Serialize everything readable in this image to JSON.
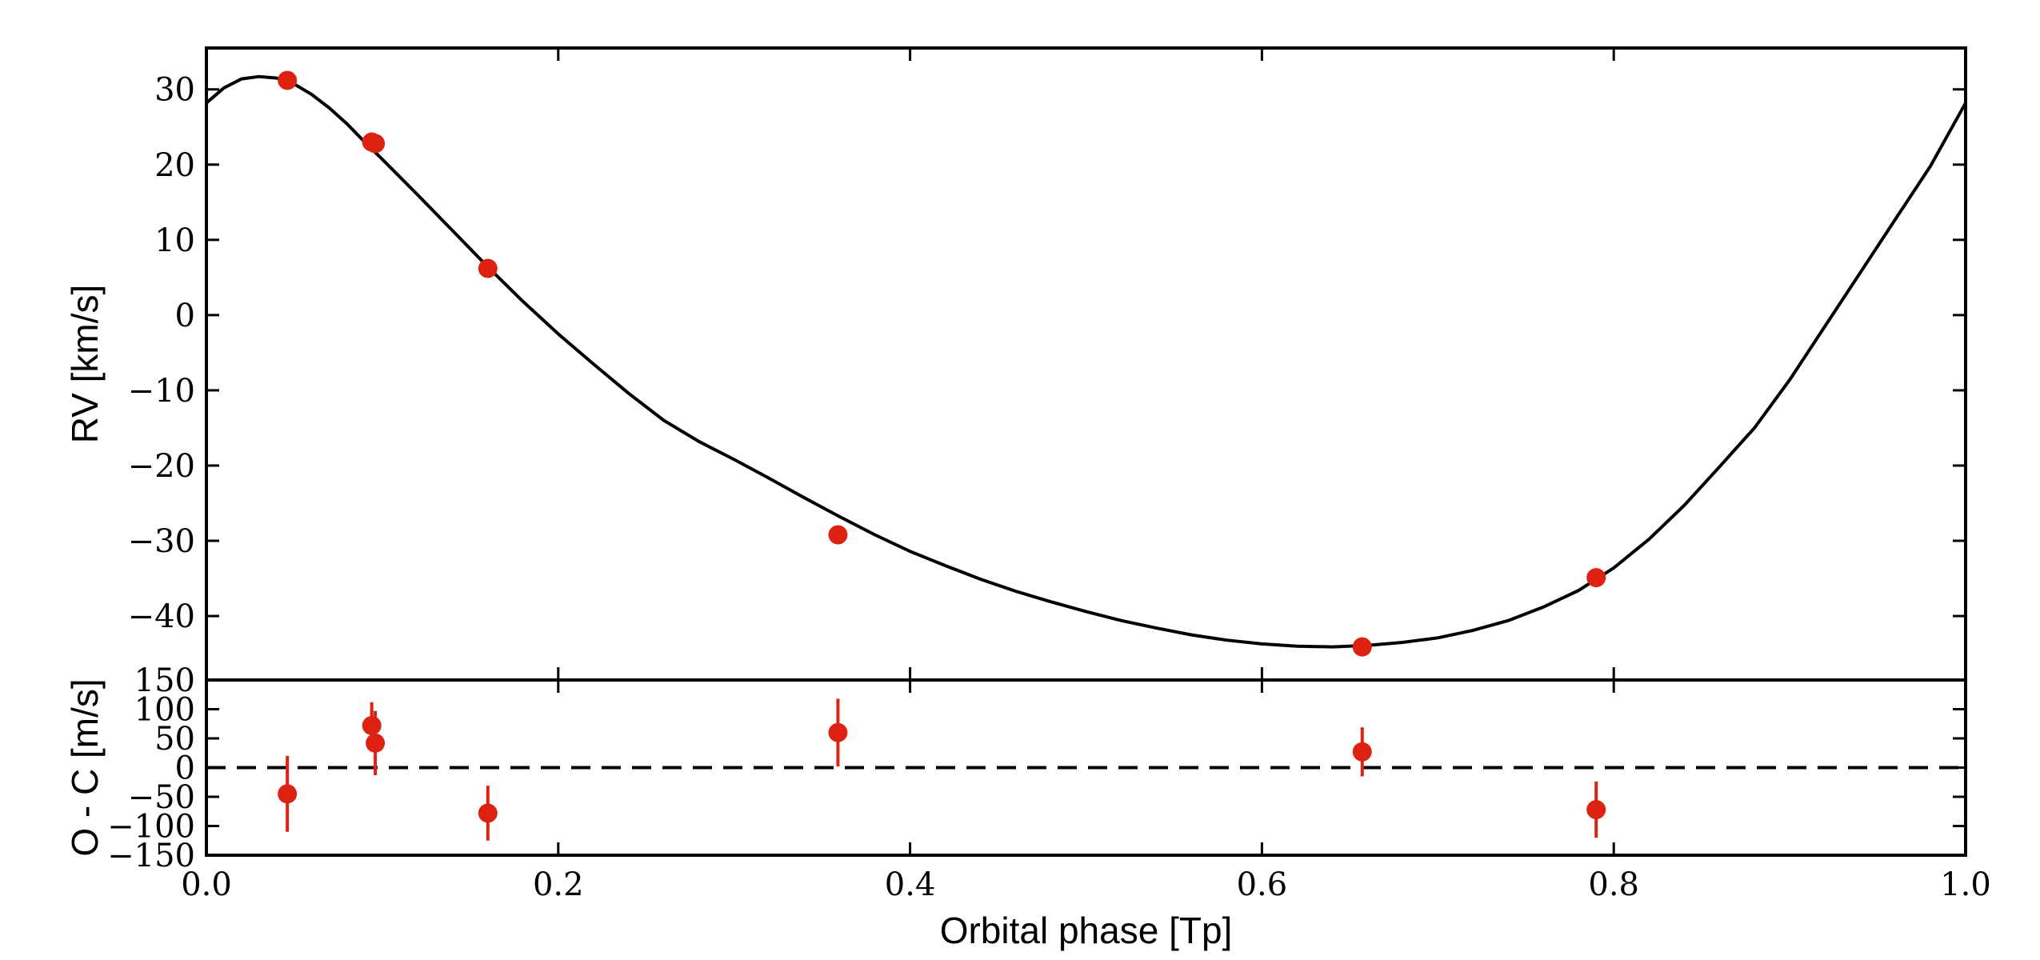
{
  "chart_data": [
    {
      "type": "line",
      "panel": "top",
      "ylabel": "RV [km/s]",
      "xlim": [
        0.0,
        1.0
      ],
      "ylim": [
        -48.5,
        35.5
      ],
      "yticks": [
        30,
        20,
        10,
        0,
        -10,
        -20,
        -30,
        -40
      ],
      "ytick_labels": [
        "30",
        "20",
        "10",
        "0",
        "−10",
        "−20",
        "−30",
        "−40"
      ],
      "grid": false,
      "model_color": "#000000",
      "point_color": "#dd2211",
      "model_curve": {
        "x": [
          0.0,
          0.01,
          0.02,
          0.03,
          0.04,
          0.05,
          0.06,
          0.07,
          0.08,
          0.09,
          0.1,
          0.12,
          0.14,
          0.16,
          0.18,
          0.2,
          0.22,
          0.24,
          0.26,
          0.28,
          0.3,
          0.32,
          0.34,
          0.36,
          0.38,
          0.4,
          0.42,
          0.44,
          0.46,
          0.48,
          0.5,
          0.52,
          0.54,
          0.56,
          0.58,
          0.6,
          0.62,
          0.64,
          0.66,
          0.68,
          0.7,
          0.72,
          0.74,
          0.76,
          0.78,
          0.8,
          0.82,
          0.84,
          0.86,
          0.88,
          0.9,
          0.92,
          0.94,
          0.96,
          0.98,
          1.0
        ],
        "y": [
          28.2,
          30.2,
          31.4,
          31.7,
          31.5,
          30.7,
          29.3,
          27.5,
          25.4,
          23.0,
          20.7,
          16.0,
          11.2,
          6.4,
          1.8,
          -2.5,
          -6.5,
          -10.4,
          -14.0,
          -16.8,
          -19.2,
          -21.7,
          -24.3,
          -26.8,
          -29.2,
          -31.4,
          -33.3,
          -35.1,
          -36.7,
          -38.1,
          -39.4,
          -40.6,
          -41.6,
          -42.5,
          -43.2,
          -43.7,
          -44.0,
          -44.1,
          -43.9,
          -43.5,
          -42.9,
          -41.9,
          -40.6,
          -38.8,
          -36.6,
          -33.6,
          -29.8,
          -25.3,
          -20.2,
          -15.0,
          -8.6,
          -1.5,
          5.6,
          12.7,
          19.8,
          28.2
        ]
      },
      "points": {
        "x": [
          0.046,
          0.094,
          0.096,
          0.16,
          0.359,
          0.657,
          0.79
        ],
        "y": [
          31.2,
          23.0,
          22.8,
          6.2,
          -29.2,
          -44.1,
          -34.9
        ]
      }
    },
    {
      "type": "scatter",
      "panel": "bottom",
      "xlabel": "Orbital phase [Tp]",
      "ylabel": "O - C [m/s]",
      "xlim": [
        0.0,
        1.0
      ],
      "ylim": [
        -150,
        150
      ],
      "xticks": [
        0.0,
        0.2,
        0.4,
        0.6,
        0.8,
        1.0
      ],
      "xtick_labels": [
        "0.0",
        "0.2",
        "0.4",
        "0.6",
        "0.8",
        "1.0"
      ],
      "yticks": [
        150,
        100,
        50,
        0,
        -50,
        -100,
        -150
      ],
      "ytick_labels": [
        "150",
        "100",
        "50",
        "0",
        "−50",
        "−100",
        "−150"
      ],
      "grid": false,
      "zero_line": "dashed",
      "point_color": "#dd2211",
      "points": {
        "x": [
          0.046,
          0.094,
          0.096,
          0.16,
          0.359,
          0.657,
          0.79
        ],
        "y": [
          -45,
          72,
          42,
          -78,
          60,
          27,
          -72
        ],
        "yerr": [
          65,
          40,
          55,
          47,
          58,
          42,
          48
        ]
      }
    }
  ]
}
